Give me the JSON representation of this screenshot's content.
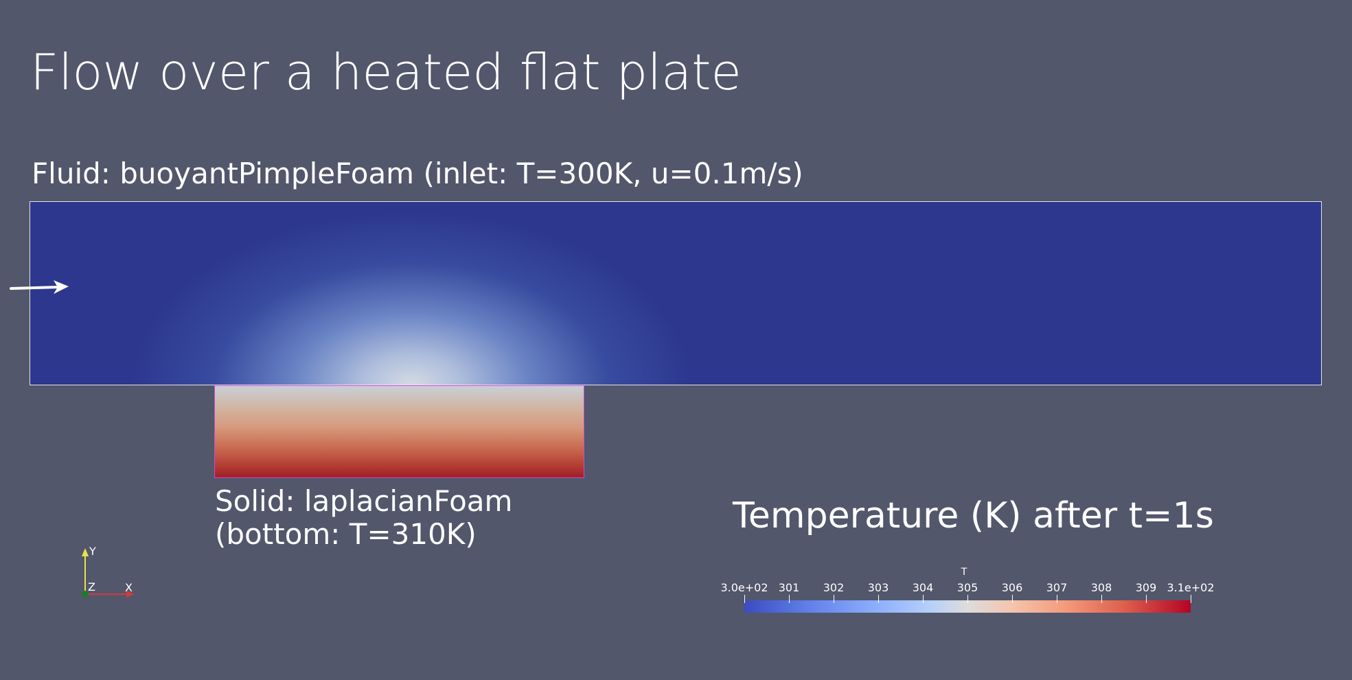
{
  "title": "Flow over a heated flat plate",
  "fluid": {
    "label": "Fluid: buoyantPimpleFoam (inlet: T=300K, u=0.1m/s)"
  },
  "solid": {
    "label_line1": "Solid: laplacianFoam",
    "label_line2": "(bottom: T=310K)"
  },
  "legend": {
    "title": "Temperature (K) after t=1s",
    "variable": "T",
    "range": [
      300,
      310
    ],
    "ticks": [
      {
        "value": 300,
        "label": "3.0e+02"
      },
      {
        "value": 301,
        "label": "301"
      },
      {
        "value": 302,
        "label": "302"
      },
      {
        "value": 303,
        "label": "303"
      },
      {
        "value": 304,
        "label": "304"
      },
      {
        "value": 305,
        "label": "305"
      },
      {
        "value": 306,
        "label": "306"
      },
      {
        "value": 307,
        "label": "307"
      },
      {
        "value": 308,
        "label": "308"
      },
      {
        "value": 309,
        "label": "309"
      },
      {
        "value": 310,
        "label": "3.1e+02"
      }
    ]
  },
  "axes": {
    "y_label": "Y",
    "z_label": "Z",
    "x_label": "X"
  },
  "colors": {
    "background": "#52576b",
    "fluid_base": "#2c378d",
    "solid_border": "#d447d6",
    "colormap_low": "#3b4cc0",
    "colormap_mid": "#dddcdc",
    "colormap_high": "#b40426"
  }
}
